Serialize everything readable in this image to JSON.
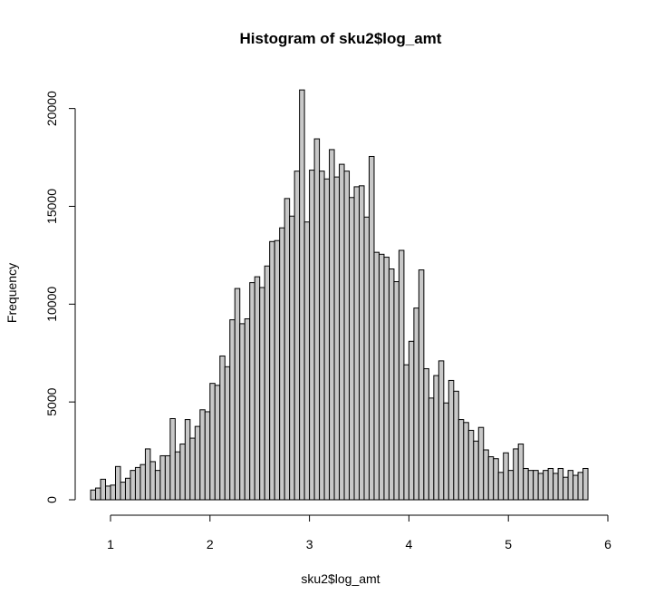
{
  "chart_data": {
    "type": "bar",
    "title": "Histogram of sku2$log_amt",
    "xlabel": "sku2$log_amt",
    "ylabel": "Frequency",
    "bin_start": 0.8,
    "bin_width": 0.05,
    "xlim": [
      0.8,
      6.0
    ],
    "ylim": [
      0,
      21000
    ],
    "x_ticks": [
      "1",
      "2",
      "3",
      "4",
      "5",
      "6"
    ],
    "y_ticks": [
      "0",
      "5000",
      "10000",
      "15000",
      "20000"
    ],
    "values": [
      500,
      600,
      1050,
      700,
      750,
      1700,
      900,
      1100,
      1500,
      1650,
      1800,
      2600,
      1950,
      1500,
      2250,
      2250,
      4150,
      2450,
      2850,
      4100,
      3150,
      3750,
      4600,
      4500,
      5950,
      5850,
      7350,
      6800,
      9200,
      10800,
      9000,
      9250,
      11100,
      11400,
      10850,
      11950,
      13200,
      13250,
      13900,
      15400,
      14500,
      16800,
      20950,
      14200,
      16850,
      18450,
      16800,
      16400,
      17900,
      16500,
      17150,
      16800,
      15450,
      16000,
      16050,
      14450,
      17550,
      12650,
      12550,
      12400,
      11800,
      11150,
      12750,
      6900,
      8100,
      9800,
      11750,
      6700,
      5200,
      6350,
      7100,
      4950,
      6100,
      5550,
      4100,
      3950,
      3550,
      3000,
      3700,
      2550,
      2200,
      2100,
      1400,
      2400,
      1500,
      2600,
      2850,
      1600,
      1500,
      1500,
      1350,
      1500,
      1600,
      1350,
      1600,
      1150,
      1500,
      1250,
      1400,
      1600
    ]
  }
}
